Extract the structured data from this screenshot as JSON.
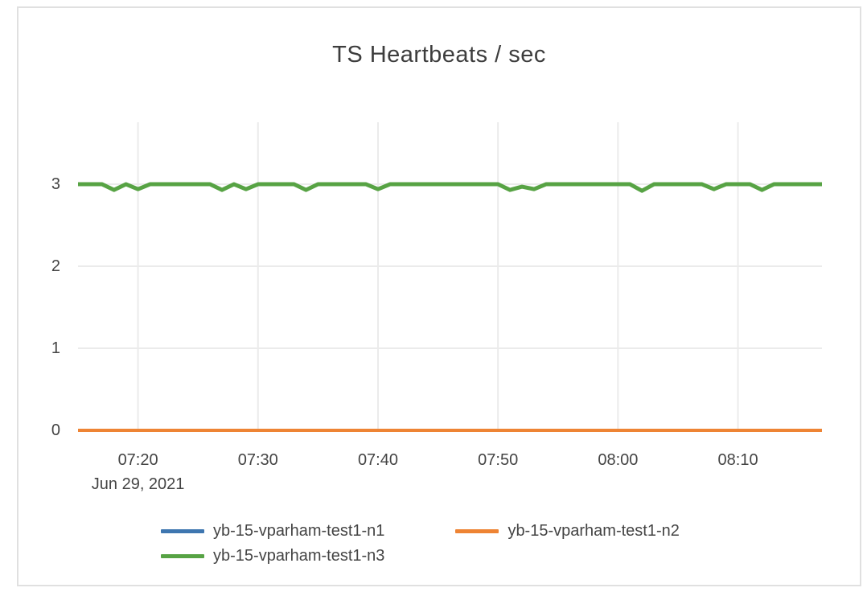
{
  "chart_data": {
    "type": "line",
    "title": "TS Heartbeats / sec",
    "x_axis": {
      "date_label": "Jun 29, 2021",
      "domain": [
        "07:15",
        "08:17"
      ],
      "ticks": [
        "07:20",
        "07:30",
        "07:40",
        "07:50",
        "08:00",
        "08:10"
      ]
    },
    "y_axis": {
      "range": [
        0,
        3.755
      ],
      "ticks": [
        0,
        1,
        2,
        3
      ],
      "gridlines": [
        1,
        2,
        3
      ],
      "zeroline": 0
    },
    "grid": "on",
    "legend_position": "bottom",
    "series": [
      {
        "name": "yb-15-vparham-test1-n1",
        "color": "#3e76b0",
        "width": 4,
        "points": [
          {
            "t": "07:15",
            "v": 0
          },
          {
            "t": "08:17",
            "v": 0
          }
        ]
      },
      {
        "name": "yb-15-vparham-test1-n2",
        "color": "#ee8434",
        "width": 4,
        "points": [
          {
            "t": "07:15",
            "v": 0
          },
          {
            "t": "08:17",
            "v": 0
          }
        ]
      },
      {
        "name": "yb-15-vparham-test1-n3",
        "color": "#57a344",
        "width": 5,
        "points": [
          {
            "t": "07:15",
            "v": 3
          },
          {
            "t": "07:17",
            "v": 3
          },
          {
            "t": "07:18",
            "v": 2.93
          },
          {
            "t": "07:19",
            "v": 3
          },
          {
            "t": "07:20",
            "v": 2.94
          },
          {
            "t": "07:21",
            "v": 3
          },
          {
            "t": "07:26",
            "v": 3
          },
          {
            "t": "07:27",
            "v": 2.93
          },
          {
            "t": "07:28",
            "v": 3
          },
          {
            "t": "07:29",
            "v": 2.94
          },
          {
            "t": "07:30",
            "v": 3
          },
          {
            "t": "07:33",
            "v": 3
          },
          {
            "t": "07:34",
            "v": 2.93
          },
          {
            "t": "07:35",
            "v": 3
          },
          {
            "t": "07:39",
            "v": 3
          },
          {
            "t": "07:40",
            "v": 2.94
          },
          {
            "t": "07:41",
            "v": 3
          },
          {
            "t": "07:50",
            "v": 3
          },
          {
            "t": "07:51",
            "v": 2.93
          },
          {
            "t": "07:52",
            "v": 2.97
          },
          {
            "t": "07:53",
            "v": 2.94
          },
          {
            "t": "07:54",
            "v": 3
          },
          {
            "t": "08:01",
            "v": 3
          },
          {
            "t": "08:02",
            "v": 2.92
          },
          {
            "t": "08:03",
            "v": 3
          },
          {
            "t": "08:07",
            "v": 3
          },
          {
            "t": "08:08",
            "v": 2.94
          },
          {
            "t": "08:09",
            "v": 3
          },
          {
            "t": "08:11",
            "v": 3
          },
          {
            "t": "08:12",
            "v": 2.93
          },
          {
            "t": "08:13",
            "v": 3
          },
          {
            "t": "08:17",
            "v": 3
          }
        ]
      }
    ]
  },
  "colors": {
    "card_border": "#e0e0e0",
    "grid": "#ebebeb",
    "zeroline": "#444444",
    "text": "#444444",
    "title": "#3d3d3d",
    "background": "#ffffff"
  }
}
